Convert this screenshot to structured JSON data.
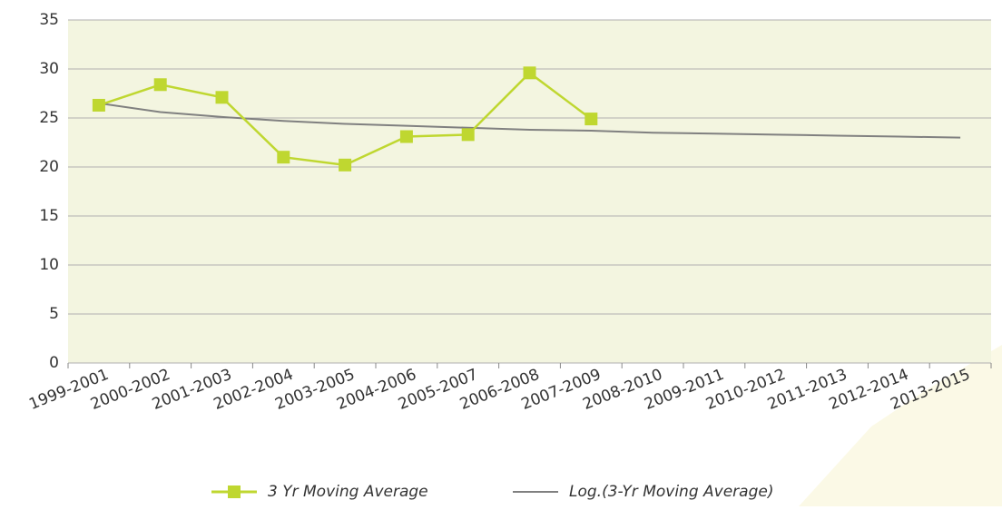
{
  "chart_data": {
    "type": "line",
    "categories": [
      "1999-2001",
      "2000-2002",
      "2001-2003",
      "2002-2004",
      "2003-2005",
      "2004-2006",
      "2005-2007",
      "2006-2008",
      "2007-2009",
      "2008-2010",
      "2009-2011",
      "2010-2012",
      "2011-2013",
      "2012-2014",
      "2013-2015"
    ],
    "series": [
      {
        "name": "3 Yr Moving Average",
        "color": "#bfd730",
        "marker": "square",
        "values": [
          26.3,
          28.4,
          27.1,
          21.0,
          20.2,
          23.1,
          23.3,
          29.6,
          24.9,
          null,
          null,
          null,
          null,
          null,
          null
        ]
      },
      {
        "name": "Log.(3-Yr Moving Average)",
        "color": "#808080",
        "marker": "none",
        "values": [
          26.5,
          25.6,
          25.1,
          24.7,
          24.4,
          24.2,
          24.0,
          23.8,
          23.7,
          23.5,
          23.4,
          23.3,
          23.2,
          23.1,
          23.0
        ]
      }
    ],
    "ylim": [
      0,
      35
    ],
    "yticks": [
      0,
      5,
      10,
      15,
      20,
      25,
      30,
      35
    ],
    "grid": true,
    "legend": "bottom"
  }
}
